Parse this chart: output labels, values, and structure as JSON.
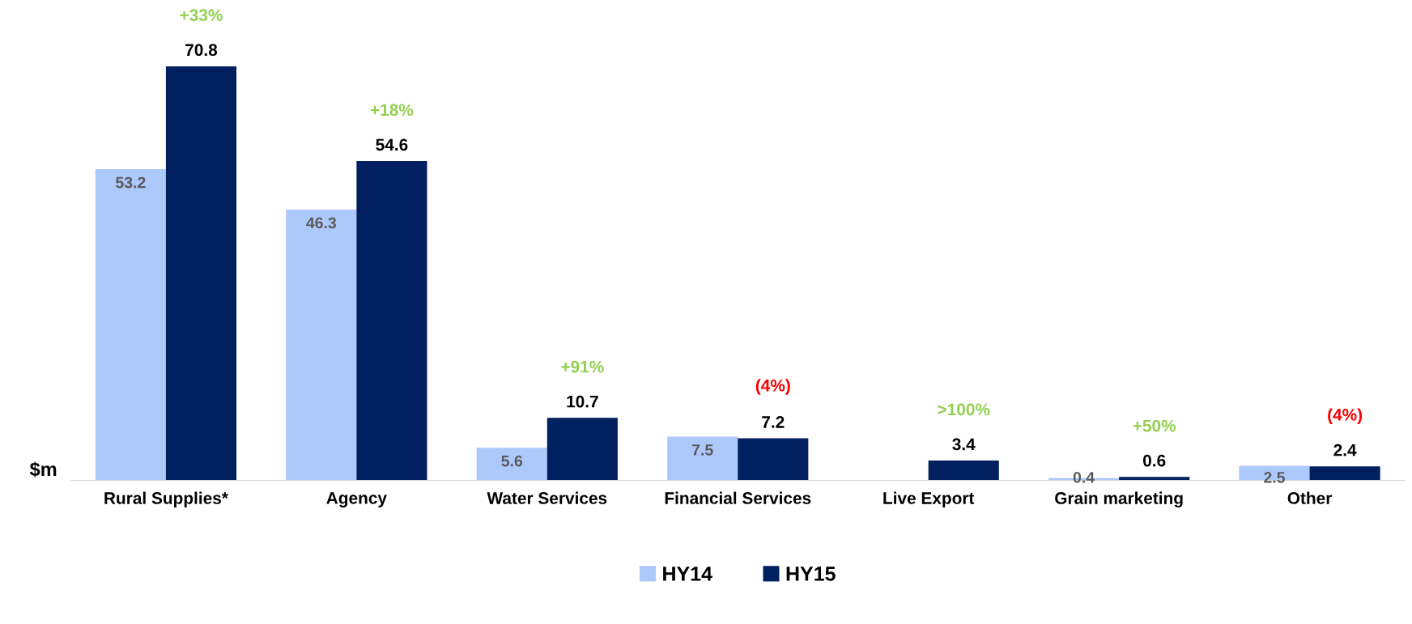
{
  "chart_data": {
    "type": "bar",
    "ylabel": "$m",
    "categories": [
      "Rural Supplies*",
      "Agency",
      "Water Services",
      "Financial Services",
      "Live Export",
      "Grain marketing",
      "Other"
    ],
    "series": [
      {
        "name": "HY14",
        "color": "#adc8fb",
        "values": [
          53.2,
          46.3,
          5.6,
          7.5,
          0,
          0.4,
          2.5
        ],
        "value_labels": [
          "53.2",
          "46.3",
          "5.6",
          "7.5",
          null,
          "0.4",
          "2.5"
        ]
      },
      {
        "name": "HY15",
        "color": "#002060",
        "values": [
          70.8,
          54.6,
          10.7,
          7.2,
          3.4,
          0.6,
          2.4
        ],
        "value_labels": [
          "70.8",
          "54.6",
          "10.7",
          "7.2",
          "3.4",
          "0.6",
          "2.4"
        ]
      }
    ],
    "annotations": [
      "+33%",
      "+18%",
      "+91%",
      "(4%)",
      ">100%",
      "+50%",
      "(4%)"
    ],
    "grid": false,
    "legend": "bottom"
  }
}
